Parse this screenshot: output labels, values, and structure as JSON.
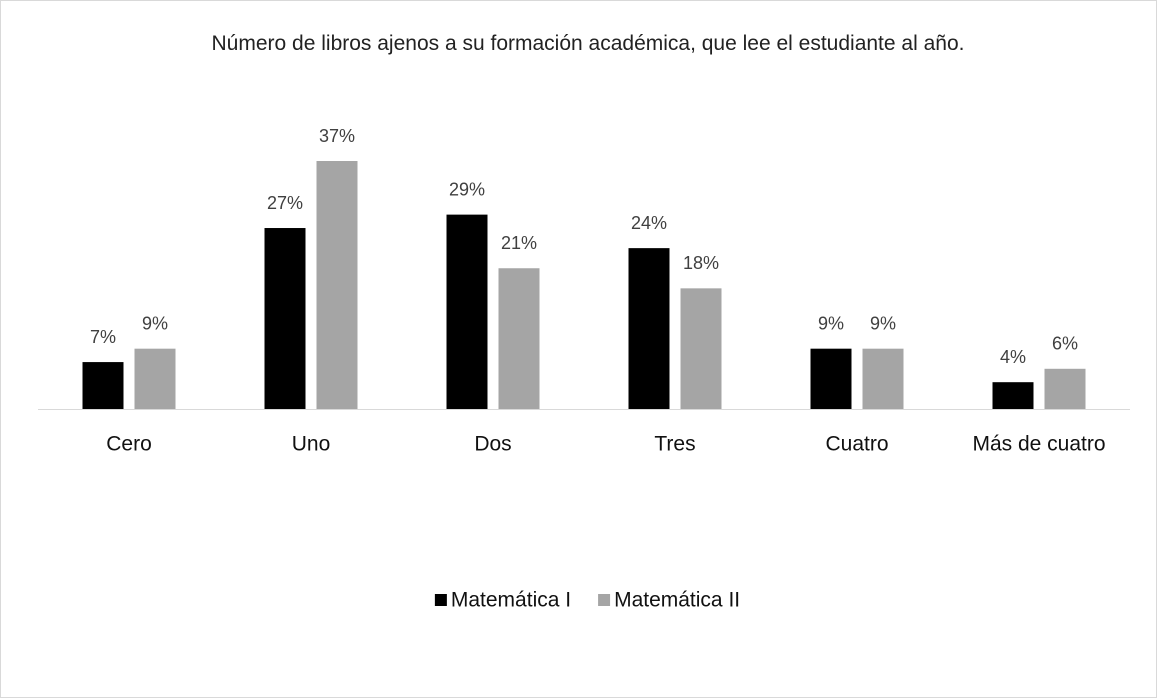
{
  "chart_data": {
    "type": "bar",
    "title": "Número de libros ajenos a su formación académica, que lee el estudiante al año.",
    "categories": [
      "Cero",
      "Uno",
      "Dos",
      "Tres",
      "Cuatro",
      "Más de cuatro"
    ],
    "series": [
      {
        "name": "Matemática I",
        "color": "#000000",
        "values": [
          7,
          27,
          29,
          24,
          9,
          4
        ],
        "value_labels": [
          "7%",
          "27%",
          "29%",
          "24%",
          "9%",
          "4%"
        ]
      },
      {
        "name": "Matemática II",
        "color": "#a5a5a5",
        "values": [
          9,
          37,
          21,
          18,
          9,
          6
        ],
        "value_labels": [
          "9%",
          "37%",
          "21%",
          "18%",
          "9%",
          "6%"
        ]
      }
    ],
    "legend": "bottom"
  }
}
